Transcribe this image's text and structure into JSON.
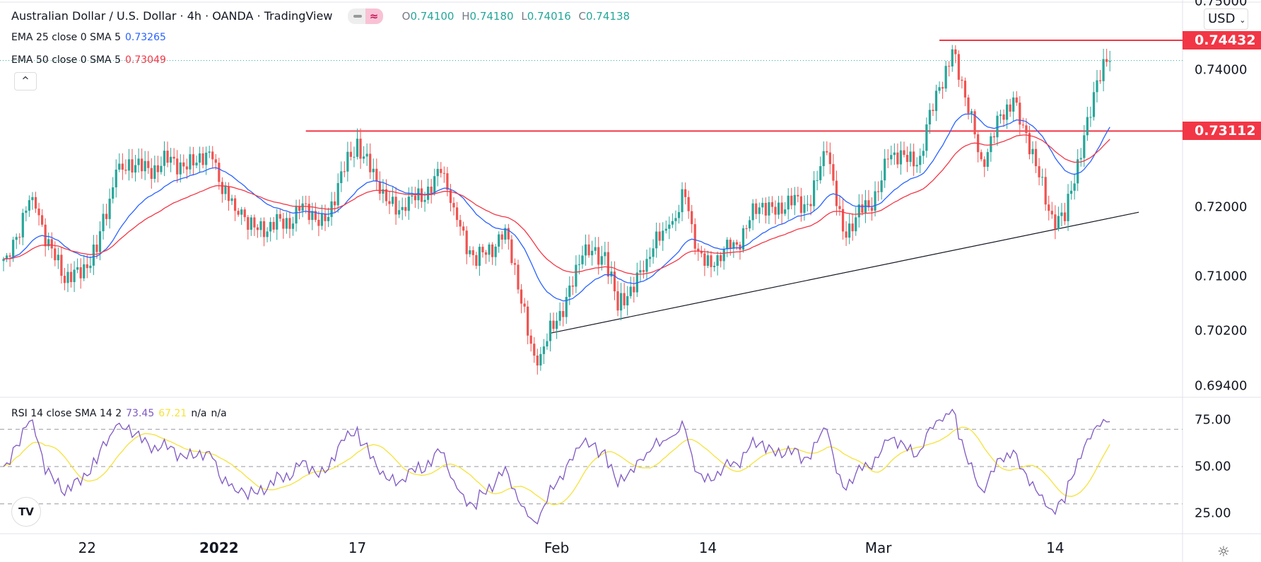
{
  "header": {
    "title": "Australian Dollar / U.S. Dollar · 4h · OANDA · TradingView",
    "ohlc": {
      "o_label": "O",
      "o": "0.74100",
      "h_label": "H",
      "h": "0.74180",
      "l_label": "L",
      "l": "0.74016",
      "c_label": "C",
      "c": "0.74138"
    }
  },
  "indicators": {
    "ema25": {
      "label": "EMA 25 close 0 SMA 5",
      "value": "0.73265"
    },
    "ema50": {
      "label": "EMA 50 close 0 SMA 5",
      "value": "0.73049"
    },
    "rsi": {
      "label": "RSI 14 close SMA 14 2",
      "value": "73.45",
      "sma": "67.21",
      "na1": "n/a",
      "na2": "n/a"
    }
  },
  "currency": "USD",
  "collapse_icon": "^",
  "logo": "TV",
  "colors": {
    "up": "#26a69a",
    "down": "#ef5350",
    "ema25": "#2962ff",
    "ema50": "#f23645",
    "rsi": "#7e57c2",
    "rsi_sma": "#f5e23c",
    "level": "#f23645",
    "trend": "#131722"
  },
  "chart_data": {
    "type": "candlestick",
    "symbol": "AUDUSD",
    "timeframe": "4h",
    "price_axis": {
      "ylim": [
        0.694,
        0.7525
      ],
      "ticks": [
        "0.75000",
        "0.74000",
        "0.72000",
        "0.71000",
        "0.70200",
        "0.69400"
      ],
      "tick_values": [
        0.75,
        0.74,
        0.72,
        0.71,
        0.702,
        0.694
      ]
    },
    "price_path": [
      [
        0,
        0.7125
      ],
      [
        1,
        0.713
      ],
      [
        9,
        0.7215
      ],
      [
        19,
        0.709
      ],
      [
        29,
        0.7135
      ],
      [
        35,
        0.7255
      ],
      [
        65,
        0.727
      ],
      [
        72,
        0.7195
      ],
      [
        82,
        0.7165
      ],
      [
        92,
        0.7195
      ],
      [
        100,
        0.718
      ],
      [
        110,
        0.73
      ],
      [
        117,
        0.722
      ],
      [
        125,
        0.7195
      ],
      [
        136,
        0.725
      ],
      [
        140,
        0.72
      ],
      [
        147,
        0.7115
      ],
      [
        156,
        0.717
      ],
      [
        161,
        0.706
      ],
      [
        166,
        0.697
      ],
      [
        172,
        0.7035
      ],
      [
        180,
        0.713
      ],
      [
        187,
        0.7135
      ],
      [
        191,
        0.705
      ],
      [
        200,
        0.7125
      ],
      [
        207,
        0.7175
      ],
      [
        212,
        0.7215
      ],
      [
        215,
        0.714
      ],
      [
        221,
        0.7115
      ],
      [
        226,
        0.714
      ],
      [
        235,
        0.72
      ],
      [
        250,
        0.7205
      ],
      [
        256,
        0.728
      ],
      [
        261,
        0.7165
      ],
      [
        269,
        0.72
      ],
      [
        275,
        0.727
      ],
      [
        285,
        0.7275
      ],
      [
        291,
        0.7375
      ],
      [
        295,
        0.743
      ],
      [
        299,
        0.736
      ],
      [
        304,
        0.727
      ],
      [
        314,
        0.736
      ],
      [
        321,
        0.726
      ],
      [
        325,
        0.7195
      ],
      [
        330,
        0.718
      ],
      [
        336,
        0.7305
      ],
      [
        340,
        0.7385
      ],
      [
        344,
        0.7413
      ]
    ],
    "last_price": 0.74138,
    "levels": [
      {
        "value": 0.74432,
        "label": "0.74432",
        "from_index": 291
      },
      {
        "value": 0.73112,
        "label": "0.73112",
        "from_index": 94
      }
    ],
    "trendline": [
      [
        170,
        0.7017
      ],
      [
        353,
        0.7193
      ]
    ],
    "rsi_axis": {
      "ylim": [
        20,
        80
      ],
      "ticks": [
        "75.00",
        "50.00",
        "25.00"
      ],
      "tick_values": [
        75,
        50,
        25
      ],
      "bands": [
        70,
        50,
        30
      ]
    },
    "x_ticks": [
      {
        "label": "22",
        "index": 26
      },
      {
        "label": "2022",
        "index": 67,
        "bold": true
      },
      {
        "label": "17",
        "index": 110
      },
      {
        "label": "Feb",
        "index": 172
      },
      {
        "label": "14",
        "index": 219
      },
      {
        "label": "Mar",
        "index": 272
      },
      {
        "label": "14",
        "index": 327
      }
    ]
  }
}
